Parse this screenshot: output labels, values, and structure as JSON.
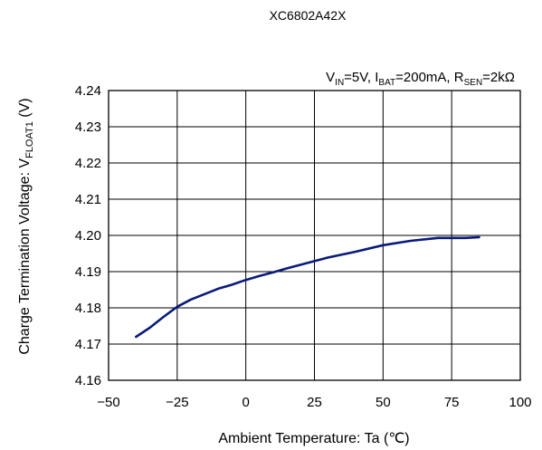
{
  "chart_data": {
    "type": "line",
    "title": "XC6802A42X",
    "conditions": {
      "vin_sym": "V",
      "vin_sub": "IN",
      "vin_val": "=5V, ",
      "ibat_sym": "I",
      "ibat_sub": "BAT",
      "ibat_val": "=200mA, ",
      "rsen_sym": "R",
      "rsen_sub": "SEN",
      "rsen_val": "=2kΩ"
    },
    "xlabel": "Ambient Temperature: Ta (℃)",
    "ylabel": {
      "prefix": "Charge Termination Voltage: V",
      "sub": "FLOAT1",
      "suffix": " (V)"
    },
    "xlim": [
      -50,
      100
    ],
    "ylim": [
      4.16,
      4.24
    ],
    "xticks": [
      -50,
      -25,
      0,
      25,
      50,
      75,
      100
    ],
    "yticks": [
      4.16,
      4.17,
      4.18,
      4.19,
      4.2,
      4.21,
      4.22,
      4.23,
      4.24
    ],
    "xtick_labels": [
      "−50",
      "−25",
      "0",
      "25",
      "50",
      "75",
      "100"
    ],
    "ytick_labels": [
      "4.16",
      "4.17",
      "4.18",
      "4.19",
      "4.20",
      "4.21",
      "4.22",
      "4.23",
      "4.24"
    ],
    "grid": true,
    "series": [
      {
        "color": "#0a1a7a",
        "x": [
          -40,
          -35,
          -30,
          -25,
          -20,
          -15,
          -10,
          -5,
          0,
          5,
          10,
          15,
          20,
          25,
          30,
          40,
          50,
          60,
          70,
          80,
          85
        ],
        "y": [
          4.172,
          4.1745,
          4.1775,
          4.1803,
          4.1823,
          4.1838,
          4.1853,
          4.1864,
          4.1877,
          4.1888,
          4.1898,
          4.1909,
          4.1919,
          4.1929,
          4.1939,
          4.1955,
          4.1973,
          4.1985,
          4.1993,
          4.1993,
          4.1995
        ]
      }
    ]
  }
}
